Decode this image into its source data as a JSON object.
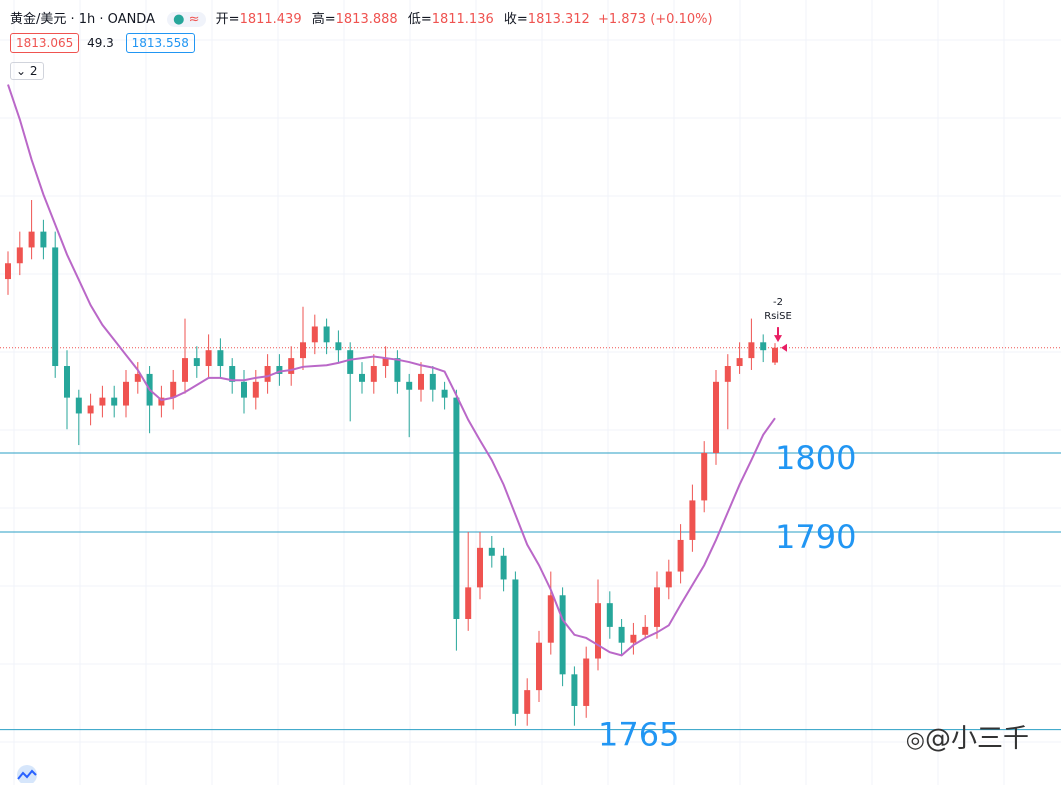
{
  "chart_data": {
    "type": "candlestick",
    "symbol": "黄金/美元 · 1h · OANDA",
    "ohlc_labels": [
      "开=",
      "高=",
      "低=",
      "收="
    ],
    "change": "+1.873 (+0.10%)",
    "bid": 1813.065,
    "spread": 49.3,
    "ask": 1813.558,
    "collapse": 2,
    "signal": {
      "qty": -2,
      "text": "RsiSE"
    },
    "watermark": "@小三千",
    "up_color": "#ef5350",
    "down_color": "#26a69a",
    "ylim": [
      1758,
      1857.3
    ],
    "grid": true,
    "open": [
      1822,
      1824,
      1826,
      1828,
      1826,
      1811,
      1807,
      1805,
      1806,
      1807,
      1806,
      1809,
      1810,
      1806,
      1807,
      1809,
      1812,
      1811,
      1813,
      1811,
      1809,
      1807,
      1809,
      1811,
      1810,
      1812,
      1814,
      1816,
      1814,
      1813,
      1810,
      1809,
      1811,
      1812,
      1809,
      1808,
      1810,
      1808,
      1807,
      1779,
      1783,
      1788,
      1787,
      1784,
      1767,
      1770,
      1776,
      1782,
      1772,
      1768,
      1774,
      1781,
      1778,
      1776,
      1777,
      1778,
      1783,
      1785,
      1789,
      1794,
      1800,
      1809,
      1811,
      1812,
      1814,
      1811.439
    ],
    "high": [
      1825.5,
      1828,
      1832,
      1829.5,
      1828,
      1813,
      1808,
      1807.5,
      1808.5,
      1808.5,
      1810.5,
      1811.5,
      1811,
      1808.5,
      1810.5,
      1817,
      1813.5,
      1815,
      1814.5,
      1812,
      1810.5,
      1810.5,
      1812.5,
      1812.5,
      1813.5,
      1818.5,
      1817.5,
      1817,
      1815.5,
      1814,
      1811.5,
      1812.5,
      1813.5,
      1813,
      1810,
      1811.5,
      1811,
      1809,
      1808,
      1790,
      1790,
      1789.5,
      1788,
      1785,
      1771.5,
      1777.5,
      1785,
      1783,
      1773,
      1775.5,
      1784,
      1782.5,
      1779,
      1778.5,
      1779.5,
      1785,
      1786.5,
      1791,
      1796,
      1801.5,
      1810.5,
      1812.5,
      1814,
      1817,
      1815,
      1813.888
    ],
    "low": [
      1820,
      1822.5,
      1824.5,
      1824.5,
      1809.5,
      1803,
      1801,
      1803.5,
      1804.5,
      1804.5,
      1804.5,
      1807.5,
      1802.5,
      1804.5,
      1805.5,
      1807.5,
      1809.5,
      1809.5,
      1809.5,
      1807.5,
      1805,
      1805.5,
      1807.5,
      1808.5,
      1808.5,
      1810.5,
      1812.5,
      1812.5,
      1811.5,
      1804,
      1807.5,
      1807.5,
      1809.5,
      1807.5,
      1802,
      1806.5,
      1806.5,
      1805.5,
      1775,
      1777.5,
      1781.5,
      1785.5,
      1782.5,
      1765.5,
      1765.5,
      1768.5,
      1774.5,
      1770.5,
      1765.5,
      1766.5,
      1772.5,
      1776.5,
      1774.5,
      1774.5,
      1776.5,
      1776.5,
      1781.5,
      1783.5,
      1787.5,
      1792.5,
      1798.5,
      1803,
      1810,
      1810.5,
      1811.5,
      1811.136
    ],
    "close": [
      1824,
      1826,
      1828,
      1826,
      1811,
      1807,
      1805,
      1806,
      1807,
      1806,
      1809,
      1810,
      1806,
      1807,
      1809,
      1812,
      1811,
      1813,
      1811,
      1809,
      1807,
      1809,
      1811,
      1810,
      1812,
      1814,
      1816,
      1814,
      1813,
      1810,
      1809,
      1811,
      1812,
      1809,
      1808,
      1810,
      1808,
      1807,
      1779,
      1783,
      1788,
      1787,
      1784,
      1767,
      1770,
      1776,
      1782,
      1772,
      1768,
      1774,
      1781,
      1778,
      1776,
      1777,
      1778,
      1783,
      1785,
      1789,
      1794,
      1800,
      1809,
      1811,
      1812,
      1814,
      1813,
      1813.312
    ],
    "ma": {
      "color": "#ba68c8",
      "values": [
        1846.6,
        1842.2,
        1837.1,
        1832.7,
        1828.9,
        1825.1,
        1821.9,
        1818.7,
        1816.2,
        1814.3,
        1812.4,
        1810.5,
        1808.0,
        1806.7,
        1807.0,
        1807.7,
        1808.6,
        1809.5,
        1809.5,
        1809.2,
        1809.2,
        1809.5,
        1809.7,
        1810.3,
        1810.5,
        1810.9,
        1811.0,
        1811.1,
        1811.4,
        1811.8,
        1812.0,
        1812.2,
        1812.0,
        1811.8,
        1811.5,
        1811.1,
        1810.8,
        1810.3,
        1807.3,
        1804.2,
        1801.6,
        1799.1,
        1796.0,
        1792.2,
        1788.4,
        1785.8,
        1782.7,
        1778.9,
        1777.0,
        1776.6,
        1775.7,
        1774.8,
        1774.4,
        1775.7,
        1776.6,
        1777.3,
        1778.2,
        1780.8,
        1783.3,
        1785.8,
        1789.0,
        1792.5,
        1796.0,
        1799.1,
        1802.3,
        1804.4
      ]
    },
    "levels": [
      1800,
      1790,
      1765
    ],
    "level_color": "#2a9fc4",
    "level_label_color": "#2196f3"
  }
}
